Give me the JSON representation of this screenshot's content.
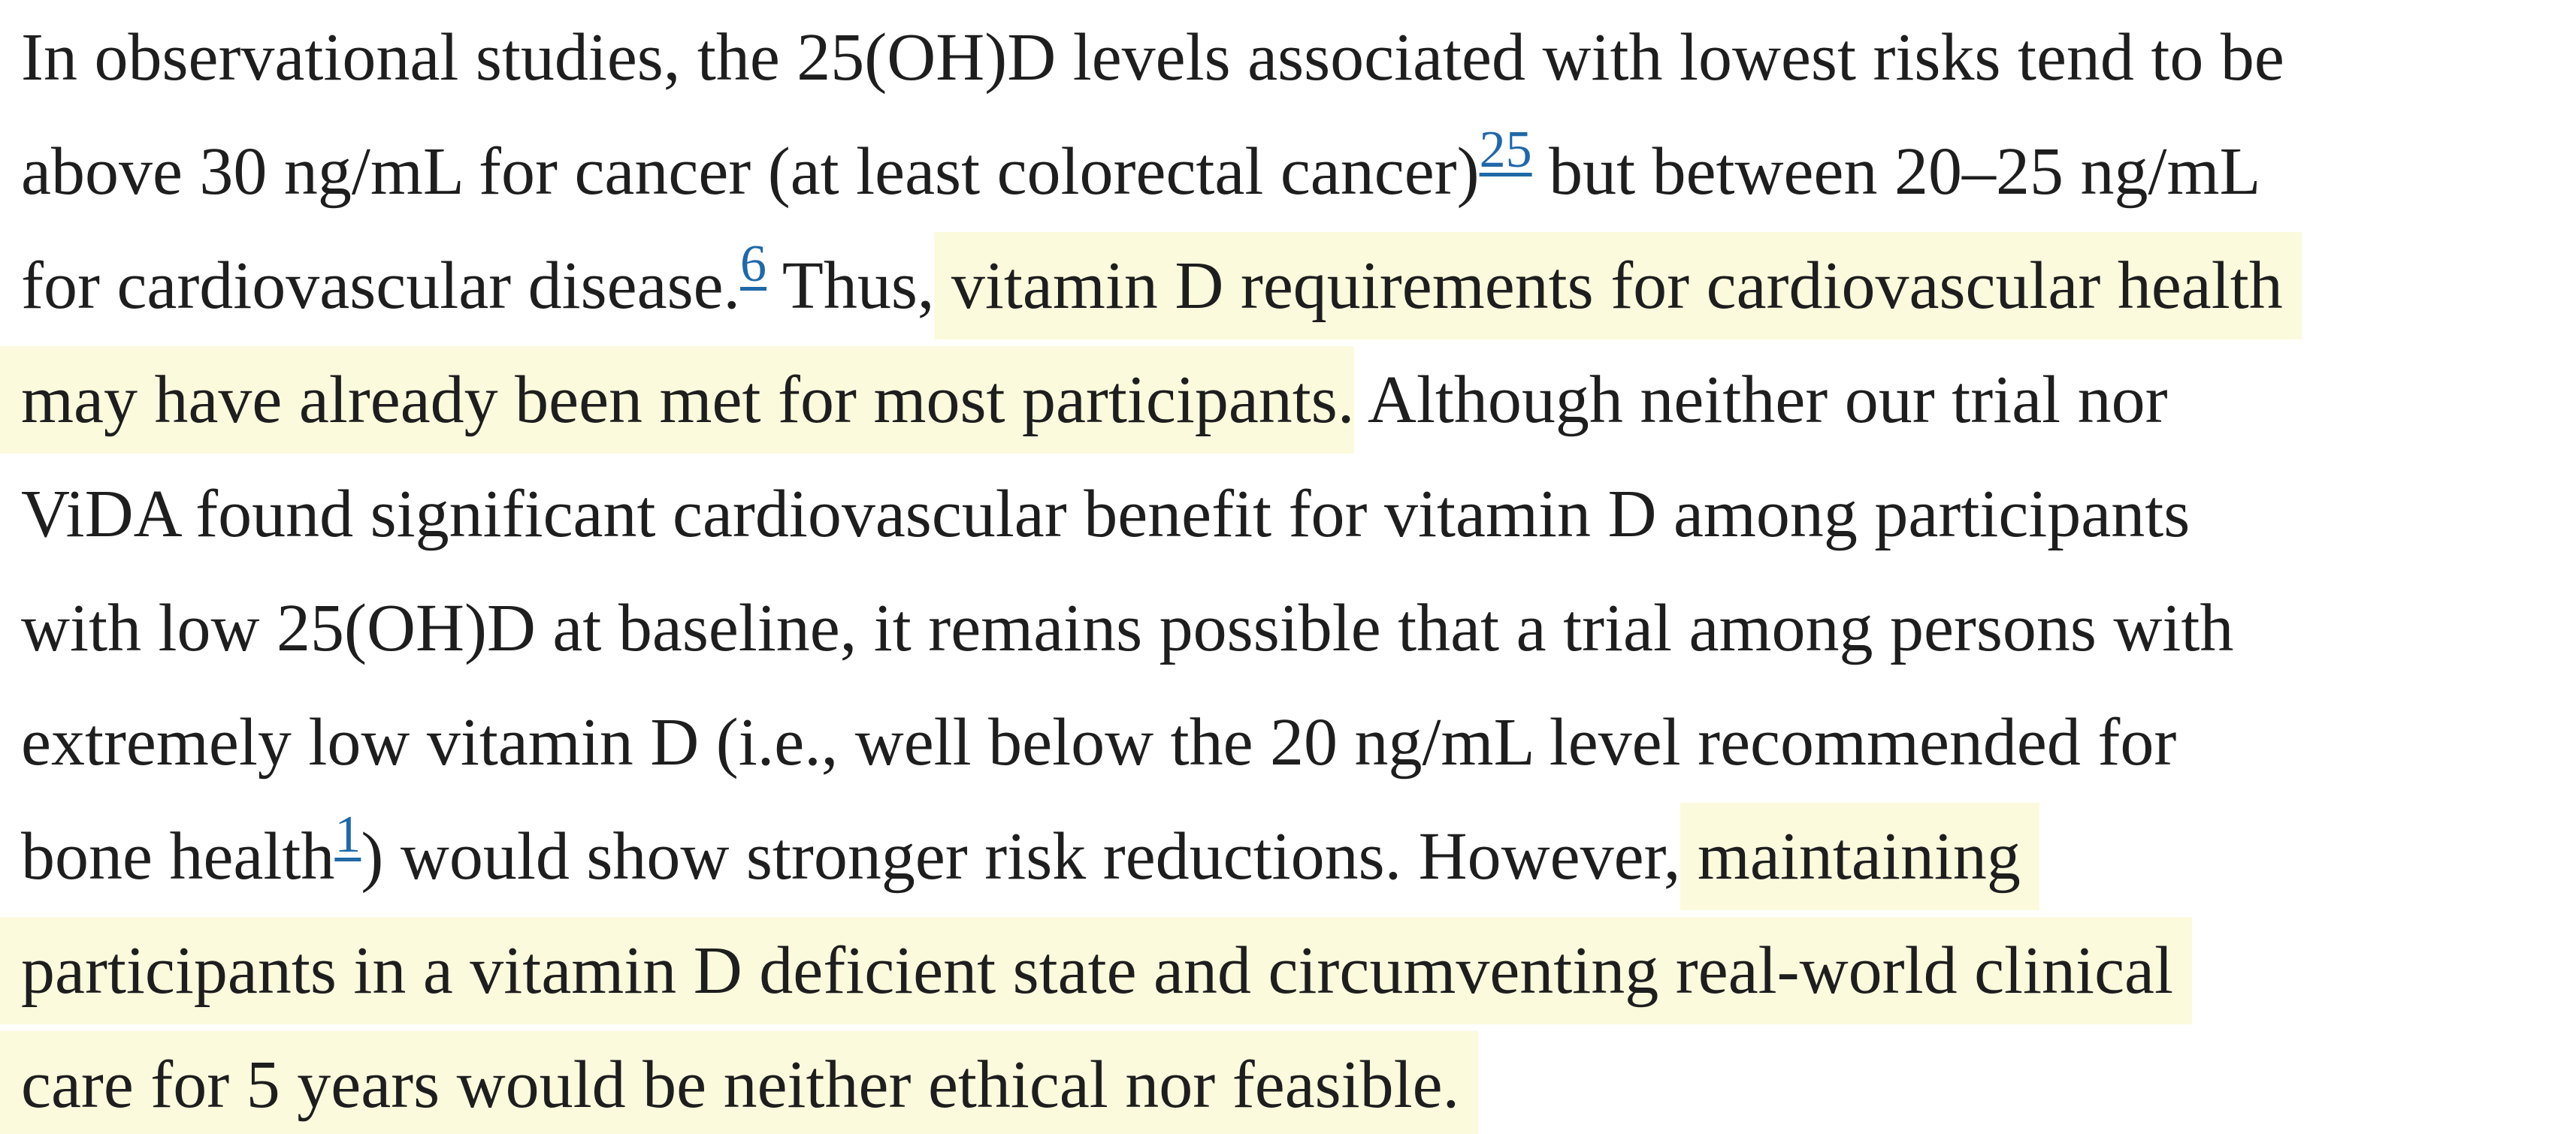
{
  "colors": {
    "background": "#ffffff",
    "text": "#1e1e1e",
    "highlight": "#fcfadd",
    "link": "#2068a8"
  },
  "paragraph": {
    "lines": [
      {
        "segments": [
          {
            "type": "text",
            "text": "In observational studies, the 25(OH)D levels associated with lowest risks tend to be"
          }
        ]
      },
      {
        "segments": [
          {
            "type": "text",
            "text": "above 30 ng/mL for cancer (at least colorectal cancer)"
          },
          {
            "type": "citation",
            "text": "25"
          },
          {
            "type": "text",
            "text": " but between 20–25 ng/mL"
          }
        ]
      },
      {
        "segments": [
          {
            "type": "text",
            "text": "for cardiovascular disease."
          },
          {
            "type": "citation",
            "text": "6"
          },
          {
            "type": "text",
            "text": " Thus,"
          },
          {
            "type": "highlight",
            "text": " vitamin D requirements for cardiovascular health",
            "trail": true
          }
        ]
      },
      {
        "segments": [
          {
            "type": "highlight",
            "text": "may have already been met for most participants.",
            "bleed_left": true
          },
          {
            "type": "text",
            "text": " Although neither our trial nor"
          }
        ]
      },
      {
        "segments": [
          {
            "type": "text",
            "text": "ViDA found significant cardiovascular benefit for vitamin D among participants"
          }
        ]
      },
      {
        "segments": [
          {
            "type": "text",
            "text": "with low 25(OH)D at baseline, it remains possible that a trial among persons with"
          }
        ]
      },
      {
        "segments": [
          {
            "type": "text",
            "text": "extremely low vitamin D (i.e., well below the 20 ng/mL level recommended for"
          }
        ]
      },
      {
        "segments": [
          {
            "type": "text",
            "text": "bone health"
          },
          {
            "type": "citation",
            "text": "1"
          },
          {
            "type": "text",
            "text": ") would show stronger risk reductions. However,"
          },
          {
            "type": "highlight",
            "text": " maintaining",
            "trail": true
          }
        ]
      },
      {
        "segments": [
          {
            "type": "highlight",
            "text": "participants in a vitamin D deficient state and circumventing real-world clinical",
            "bleed_left": true,
            "trail": true
          }
        ]
      },
      {
        "segments": [
          {
            "type": "highlight",
            "text": "care for 5 years would be neither ethical nor feasible.",
            "bleed_left": true,
            "trail": true
          }
        ]
      }
    ]
  }
}
